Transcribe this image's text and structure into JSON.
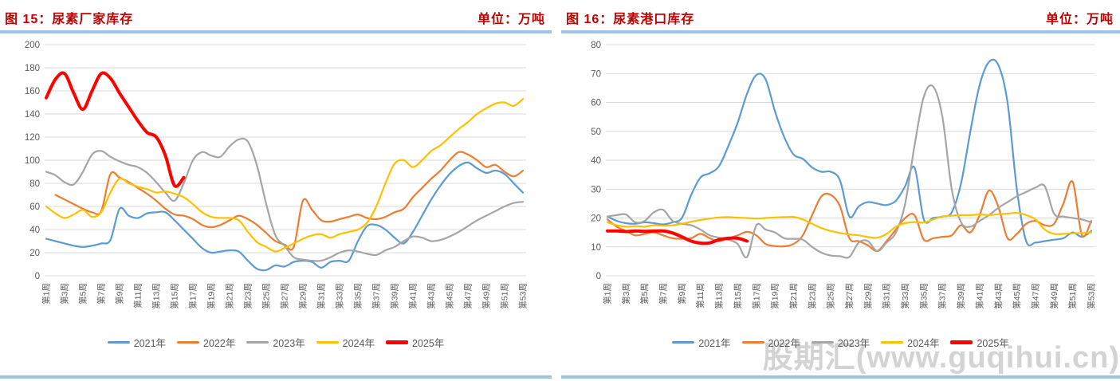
{
  "panels": [
    {
      "title": "图 15：尿素厂家库存",
      "unit": "单位：万吨",
      "title_color": "#C00000",
      "rule_color": "#9DC3E6"
    },
    {
      "title": "图 16：尿素港口库存",
      "unit": "单位：万吨",
      "title_color": "#C00000",
      "rule_color": "#9DC3E6",
      "watermark": "股期汇(www.guqihui.cn)"
    }
  ],
  "colors": {
    "title": "#C00000",
    "rule": "#9DC3E6",
    "grid": "#D9D9D9",
    "axis_text": "#595959",
    "s2021": "#5B9BD5",
    "s2022": "#ED7D31",
    "s2023": "#A5A5A5",
    "s2024": "#FFC000",
    "s2025": "#FF0000",
    "watermark": "#C3C3C3"
  },
  "chart_data": [
    {
      "type": "line",
      "title": "尿素厂家库存",
      "unit": "万吨",
      "weeks": 53,
      "x_tick_labels": [
        "第1周",
        "第3周",
        "第5周",
        "第7周",
        "第9周",
        "第11周",
        "第13周",
        "第15周",
        "第17周",
        "第19周",
        "第21周",
        "第23周",
        "第25周",
        "第27周",
        "第29周",
        "第31周",
        "第33周",
        "第35周",
        "第37周",
        "第39周",
        "第41周",
        "第43周",
        "第45周",
        "第47周",
        "第49周",
        "第51周",
        "第53周"
      ],
      "ylim": [
        0,
        200
      ],
      "yticks": [
        0,
        20,
        40,
        60,
        80,
        100,
        120,
        140,
        160,
        180,
        200
      ],
      "grid": true,
      "legend_position": "bottom",
      "series": [
        {
          "name": "2021年",
          "color": "#5B9BD5",
          "width": 2.2,
          "values": [
            32,
            30,
            28,
            26,
            25,
            26,
            28,
            31,
            58,
            52,
            50,
            54,
            55,
            55,
            48,
            40,
            32,
            24,
            20,
            21,
            22,
            21,
            13,
            6,
            5,
            9,
            8,
            12,
            13,
            12,
            7,
            12,
            13,
            13,
            30,
            43,
            44,
            40,
            33,
            28,
            38,
            52,
            66,
            78,
            88,
            95,
            98,
            93,
            89,
            91,
            88,
            80,
            72
          ]
        },
        {
          "name": "2022年",
          "color": "#ED7D31",
          "width": 2.2,
          "values": [
            null,
            70,
            66,
            62,
            58,
            55,
            56,
            88,
            85,
            81,
            76,
            71,
            65,
            58,
            53,
            52,
            49,
            44,
            42,
            44,
            48,
            52,
            49,
            44,
            37,
            30,
            27,
            25,
            65,
            57,
            48,
            47,
            49,
            51,
            53,
            50,
            49,
            51,
            55,
            58,
            68,
            76,
            84,
            91,
            100,
            107,
            105,
            100,
            94,
            96,
            90,
            86,
            91
          ]
        },
        {
          "name": "2023年",
          "color": "#A5A5A5",
          "width": 2.2,
          "values": [
            90,
            87,
            81,
            79,
            90,
            105,
            108,
            103,
            99,
            96,
            94,
            89,
            81,
            72,
            65,
            80,
            100,
            107,
            104,
            103,
            112,
            118,
            116,
            95,
            62,
            35,
            26,
            16,
            14,
            13,
            13,
            16,
            20,
            22,
            21,
            19,
            18,
            22,
            25,
            30,
            34,
            33,
            30,
            31,
            34,
            38,
            43,
            48,
            52,
            56,
            60,
            63,
            64
          ]
        },
        {
          "name": "2024年",
          "color": "#FFC000",
          "width": 2.2,
          "values": [
            60,
            54,
            50,
            53,
            57,
            51,
            55,
            72,
            84,
            80,
            77,
            75,
            72,
            73,
            71,
            68,
            62,
            55,
            51,
            50,
            50,
            48,
            38,
            29,
            25,
            21,
            24,
            28,
            32,
            35,
            36,
            33,
            36,
            38,
            40,
            46,
            60,
            80,
            97,
            100,
            94,
            100,
            108,
            113,
            120,
            127,
            133,
            140,
            145,
            149,
            150,
            147,
            153
          ]
        },
        {
          "name": "2025年",
          "color": "#FF0000",
          "width": 4,
          "values": [
            154,
            170,
            175,
            158,
            144,
            160,
            175,
            171,
            158,
            146,
            134,
            124,
            120,
            104,
            78,
            85
          ]
        }
      ]
    },
    {
      "type": "line",
      "title": "尿素港口库存",
      "unit": "万吨",
      "weeks": 53,
      "x_tick_labels": [
        "第1周",
        "第3周",
        "第5周",
        "第7周",
        "第9周",
        "第11周",
        "第13周",
        "第15周",
        "第17周",
        "第19周",
        "第21周",
        "第23周",
        "第25周",
        "第27周",
        "第29周",
        "第31周",
        "第33周",
        "第35周",
        "第37周",
        "第39周",
        "第41周",
        "第43周",
        "第45周",
        "第47周",
        "第49周",
        "第51周",
        "第53周"
      ],
      "ylim": [
        0,
        80
      ],
      "yticks": [
        0,
        10,
        20,
        30,
        40,
        50,
        60,
        70,
        80
      ],
      "grid": true,
      "legend_position": "bottom",
      "series": [
        {
          "name": "2021年",
          "color": "#5B9BD5",
          "width": 2.2,
          "values": [
            20.5,
            19,
            18.2,
            18,
            18.5,
            18.2,
            17.8,
            18.5,
            20,
            28,
            34,
            35.5,
            38,
            45,
            53,
            63,
            69.5,
            68,
            57,
            48,
            42,
            40.5,
            37.5,
            36,
            36,
            33,
            20.5,
            24,
            25.5,
            25,
            24.5,
            26,
            31,
            37.5,
            19.5,
            20,
            20.5,
            22,
            32,
            50,
            66,
            74,
            73,
            60,
            30,
            12,
            11.5,
            12,
            12.5,
            13,
            15,
            13.5,
            15.5
          ]
        },
        {
          "name": "2022年",
          "color": "#ED7D31",
          "width": 2.2,
          "values": [
            19.5,
            17,
            15.5,
            14,
            14.5,
            15,
            14,
            13,
            12.8,
            13,
            14.5,
            13,
            12,
            13,
            14,
            15.2,
            14,
            11,
            10.3,
            10.2,
            11,
            14,
            21,
            27.5,
            28,
            24,
            13,
            12,
            10.5,
            8.6,
            12,
            16,
            20,
            21,
            12.5,
            13,
            13.5,
            14,
            17.5,
            15,
            21,
            29.5,
            24,
            13,
            14.5,
            18,
            19,
            17.5,
            18,
            25,
            32.5,
            14,
            19
          ]
        },
        {
          "name": "2023年",
          "color": "#A5A5A5",
          "width": 2.2,
          "values": [
            20.5,
            21,
            21.2,
            18.5,
            19,
            22,
            22.8,
            19,
            18,
            17.5,
            16,
            14,
            13.2,
            12.5,
            11,
            6.5,
            17.5,
            16,
            15,
            13,
            12.8,
            12.5,
            10,
            8,
            7,
            6.8,
            6.5,
            11.5,
            12,
            8.5,
            11.5,
            15,
            25,
            45,
            62,
            65.5,
            55,
            30,
            18.5,
            17,
            19,
            21,
            23.5,
            25.5,
            27.5,
            29,
            30.5,
            31,
            21.5,
            20.5,
            20,
            19.5,
            18.5
          ]
        },
        {
          "name": "2024年",
          "color": "#FFC000",
          "width": 2.2,
          "values": [
            18.5,
            17.5,
            17,
            17.2,
            17,
            17.5,
            17.3,
            17.5,
            18,
            18.7,
            19.3,
            19.8,
            20.2,
            20.3,
            20.1,
            20,
            19.8,
            20,
            20.2,
            20.3,
            20.4,
            19.5,
            18,
            16.5,
            15.5,
            14.8,
            14.3,
            14,
            13.4,
            13.2,
            14.5,
            17,
            18.2,
            18.6,
            18.4,
            19.5,
            20.5,
            20.8,
            21,
            21,
            21.2,
            21,
            21.3,
            21.5,
            21.8,
            21,
            19.5,
            16,
            14.5,
            14.5,
            14.7,
            14.8,
            15
          ]
        },
        {
          "name": "2025年",
          "color": "#FF0000",
          "width": 4,
          "values": [
            15.5,
            15.5,
            15.3,
            15.5,
            15.4,
            15.5,
            15.5,
            14.8,
            13.5,
            12,
            11.3,
            11.4,
            12.5,
            13,
            13,
            12
          ]
        }
      ]
    }
  ]
}
